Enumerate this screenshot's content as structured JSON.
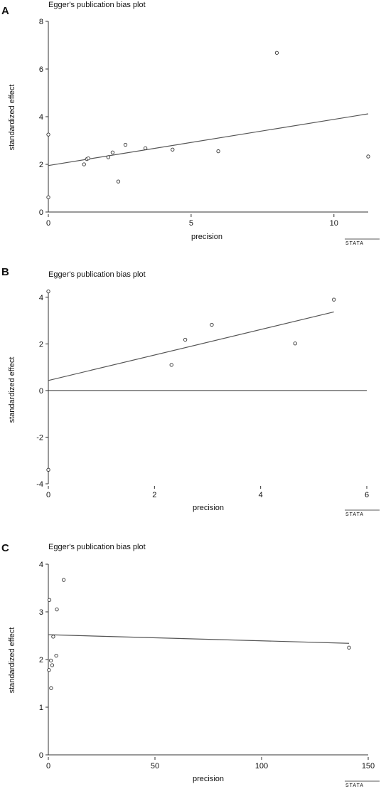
{
  "panels": [
    {
      "panel_label": "A",
      "title": "Egger's publication bias plot",
      "xlabel": "precision",
      "ylabel": "standardized effect",
      "logo": "STATA"
    },
    {
      "panel_label": "B",
      "title": "Egger's publication bias plot",
      "xlabel": "precision",
      "ylabel": "standardized effect",
      "logo": "STATA"
    },
    {
      "panel_label": "C",
      "title": "Egger's publication bias plot",
      "xlabel": "precision",
      "ylabel": "standardized effect",
      "logo": "STATA"
    }
  ],
  "chart_data": [
    {
      "type": "scatter",
      "title": "Egger's publication bias plot",
      "xlabel": "precision",
      "ylabel": "standardized effect",
      "xlim": [
        0,
        11.2
      ],
      "ylim": [
        0,
        8
      ],
      "xticks": [
        0,
        5,
        10
      ],
      "yticks": [
        0,
        2,
        4,
        6,
        8
      ],
      "points": [
        {
          "x": 0,
          "y": 3.25
        },
        {
          "x": 0,
          "y": 0.62
        },
        {
          "x": 1.25,
          "y": 2.0
        },
        {
          "x": 1.35,
          "y": 2.22
        },
        {
          "x": 1.4,
          "y": 2.25
        },
        {
          "x": 2.1,
          "y": 2.3
        },
        {
          "x": 2.25,
          "y": 2.5
        },
        {
          "x": 2.45,
          "y": 1.28
        },
        {
          "x": 2.7,
          "y": 2.82
        },
        {
          "x": 3.4,
          "y": 2.68
        },
        {
          "x": 4.35,
          "y": 2.62
        },
        {
          "x": 5.95,
          "y": 2.55
        },
        {
          "x": 8.0,
          "y": 6.68
        },
        {
          "x": 11.2,
          "y": 2.33
        }
      ],
      "fit_line": {
        "x": [
          0,
          11.2
        ],
        "y": [
          1.95,
          4.12
        ]
      },
      "vertical_line": {
        "x": 0,
        "y": [
          0,
          8
        ]
      },
      "baseline_y": 0,
      "grid": false
    },
    {
      "type": "scatter",
      "title": "Egger's publication bias plot",
      "xlabel": "precision",
      "ylabel": "standardized effect",
      "xlim": [
        0,
        6
      ],
      "ylim": [
        -4,
        4.3
      ],
      "xticks": [
        0,
        2,
        4,
        6
      ],
      "yticks": [
        -4,
        -2,
        0,
        2,
        4
      ],
      "points": [
        {
          "x": 0,
          "y": 4.25
        },
        {
          "x": 0,
          "y": -3.4
        },
        {
          "x": 2.32,
          "y": 1.1
        },
        {
          "x": 2.58,
          "y": 2.18
        },
        {
          "x": 3.08,
          "y": 2.82
        },
        {
          "x": 4.65,
          "y": 2.02
        },
        {
          "x": 5.38,
          "y": 3.9
        }
      ],
      "fit_line": {
        "x": [
          0,
          5.38
        ],
        "y": [
          0.43,
          3.37
        ]
      },
      "vertical_line": {
        "x": 0,
        "y": [
          -4,
          4.3
        ]
      },
      "baseline_y": 0,
      "grid": false
    },
    {
      "type": "scatter",
      "title": "Egger's publication bias plot",
      "xlabel": "precision",
      "ylabel": "standardized effect",
      "xlim": [
        0,
        150
      ],
      "ylim": [
        0,
        4
      ],
      "xticks": [
        0,
        50,
        100,
        150
      ],
      "yticks": [
        0,
        1,
        2,
        3,
        4
      ],
      "points": [
        {
          "x": 0.5,
          "y": 3.25
        },
        {
          "x": 0.3,
          "y": 1.78
        },
        {
          "x": 1.2,
          "y": 1.98
        },
        {
          "x": 1.3,
          "y": 1.4
        },
        {
          "x": 1.8,
          "y": 1.88
        },
        {
          "x": 2.3,
          "y": 2.48
        },
        {
          "x": 3.7,
          "y": 2.08
        },
        {
          "x": 4.0,
          "y": 3.05
        },
        {
          "x": 7.2,
          "y": 3.67
        },
        {
          "x": 141,
          "y": 2.25
        }
      ],
      "fit_line": {
        "x": [
          0,
          141
        ],
        "y": [
          2.52,
          2.34
        ]
      },
      "vertical_line": {
        "x": 0,
        "y": [
          0,
          4
        ]
      },
      "baseline_y": 0,
      "grid": false
    }
  ]
}
